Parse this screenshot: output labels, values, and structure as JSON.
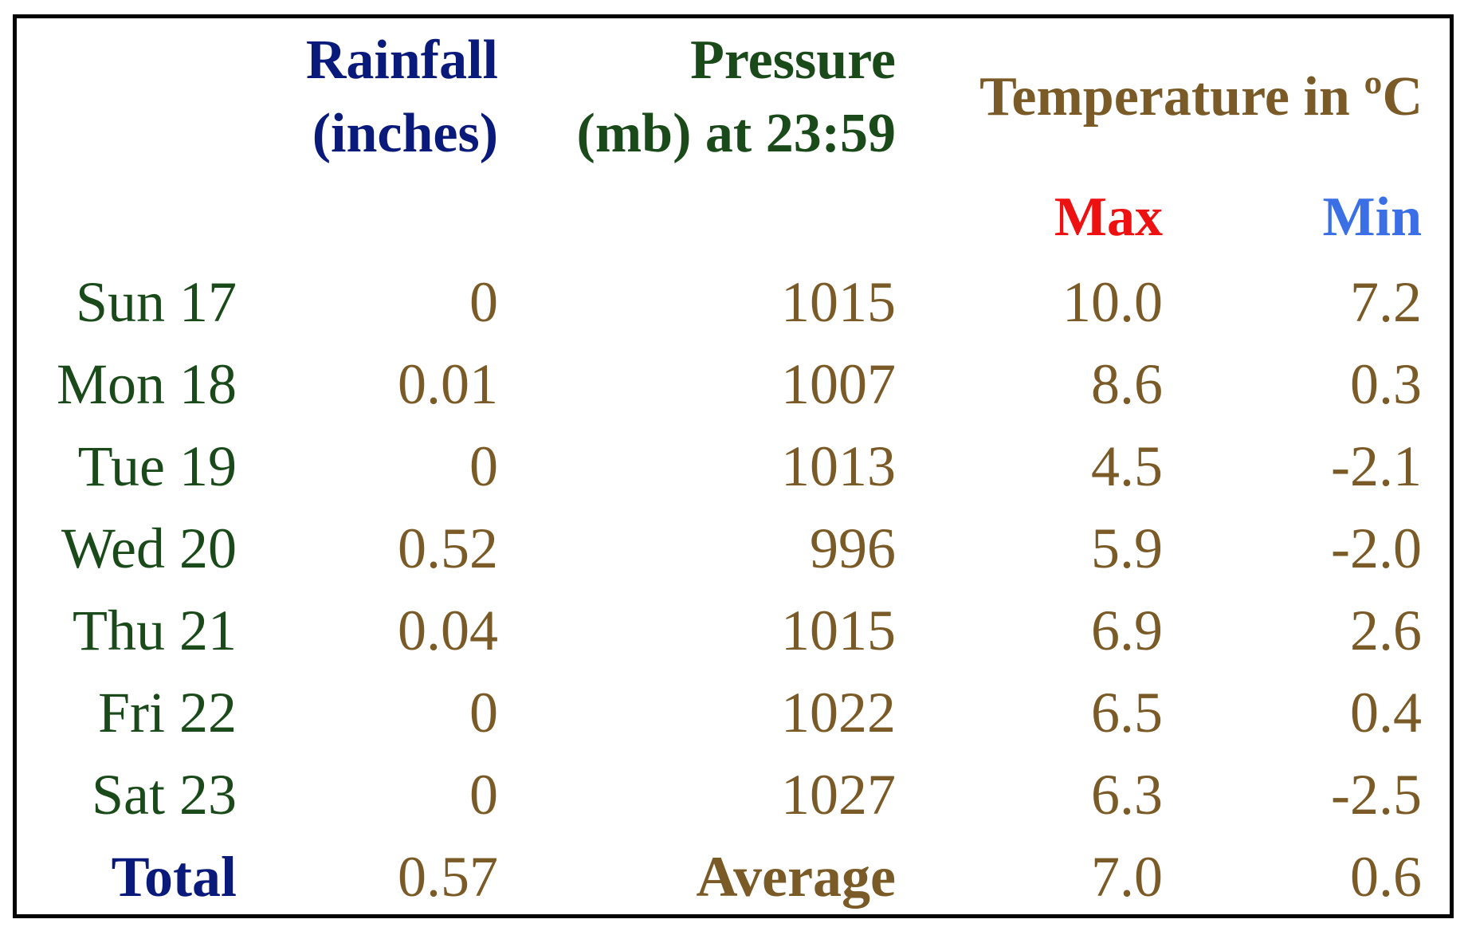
{
  "headers": {
    "rainfall_line1": "Rainfall",
    "rainfall_line2": "(inches)",
    "pressure_line1": "Pressure",
    "pressure_line2": "(mb) at 23:59",
    "temperature": "Temperature in ºC",
    "max": "Max",
    "min": "Min"
  },
  "colors": {
    "rainfall_header": "#0a1a7a",
    "pressure_header": "#1a4a1a",
    "values": "#7a5a26",
    "max_header": "#ee1111",
    "min_header": "#3b6fe6",
    "day_labels": "#1a4a1a"
  },
  "rows": [
    {
      "day": "Sun 17",
      "rainfall": "0",
      "pressure": "1015",
      "max": "10.0",
      "min": "7.2"
    },
    {
      "day": "Mon 18",
      "rainfall": "0.01",
      "pressure": "1007",
      "max": "8.6",
      "min": "0.3"
    },
    {
      "day": "Tue 19",
      "rainfall": "0",
      "pressure": "1013",
      "max": "4.5",
      "min": "-2.1"
    },
    {
      "day": "Wed 20",
      "rainfall": "0.52",
      "pressure": "996",
      "max": "5.9",
      "min": "-2.0"
    },
    {
      "day": "Thu 21",
      "rainfall": "0.04",
      "pressure": "1015",
      "max": "6.9",
      "min": "2.6"
    },
    {
      "day": "Fri 22",
      "rainfall": "0",
      "pressure": "1022",
      "max": "6.5",
      "min": "0.4"
    },
    {
      "day": "Sat 23",
      "rainfall": "0",
      "pressure": "1027",
      "max": "6.3",
      "min": "-2.5"
    }
  ],
  "summary": {
    "total_label": "Total",
    "rainfall_total": "0.57",
    "average_label": "Average",
    "max_average": "7.0",
    "min_average": "0.6"
  }
}
